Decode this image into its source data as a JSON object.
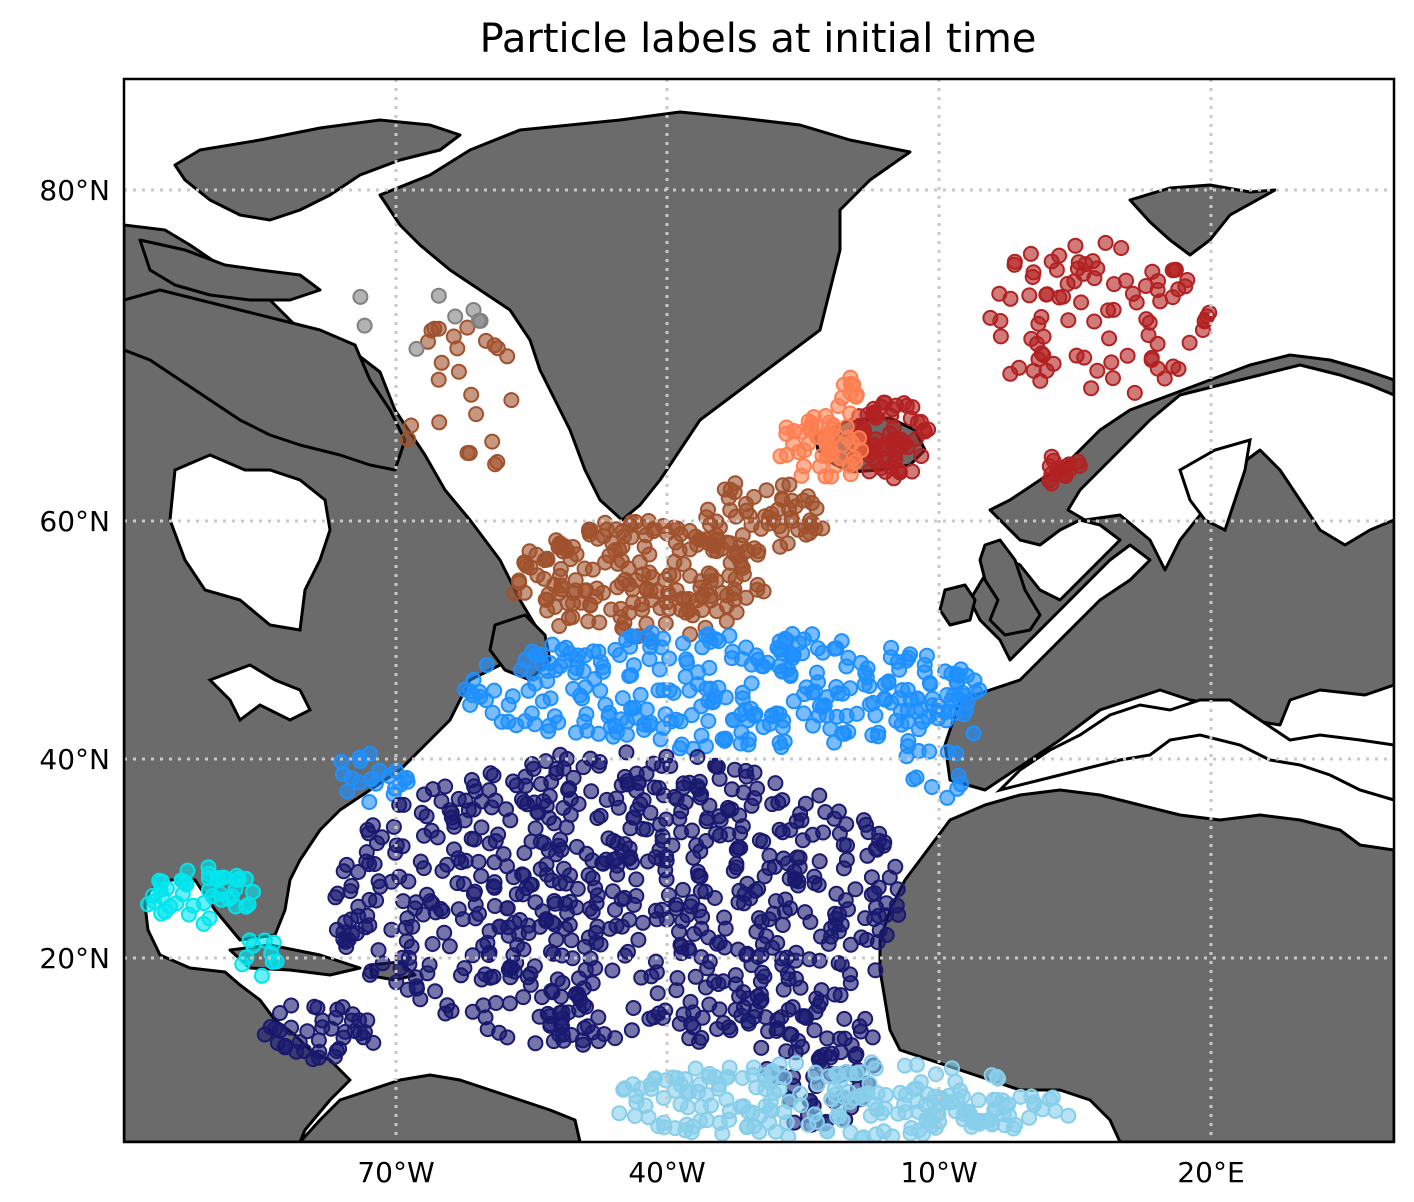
{
  "map": {
    "title": "Particle labels at initial time",
    "lat_ticks": [
      "80°N",
      "60°N",
      "40°N",
      "20°N"
    ],
    "lon_ticks": [
      "70°W",
      "40°W",
      "10°W",
      "20°E"
    ],
    "land_color": "#6b6b6b",
    "coastline_color": "#000000",
    "gridlines": "dotted",
    "clusters": [
      {
        "color": "#b22222",
        "region": "Norwegian Sea / Iceland east"
      },
      {
        "color": "#ff7f50",
        "region": "Iceland south"
      },
      {
        "color": "#a0522d",
        "region": "Labrador Sea / subpolar gyre"
      },
      {
        "color": "#1e90ff",
        "region": "North Atlantic Current"
      },
      {
        "color": "#191970",
        "region": "Subtropical gyre"
      },
      {
        "color": "#00e5ee",
        "region": "Gulf of Mexico"
      },
      {
        "color": "#87ceeb",
        "region": "Equatorial Atlantic"
      },
      {
        "color": "#808080",
        "region": "Baffin Bay"
      }
    ]
  }
}
